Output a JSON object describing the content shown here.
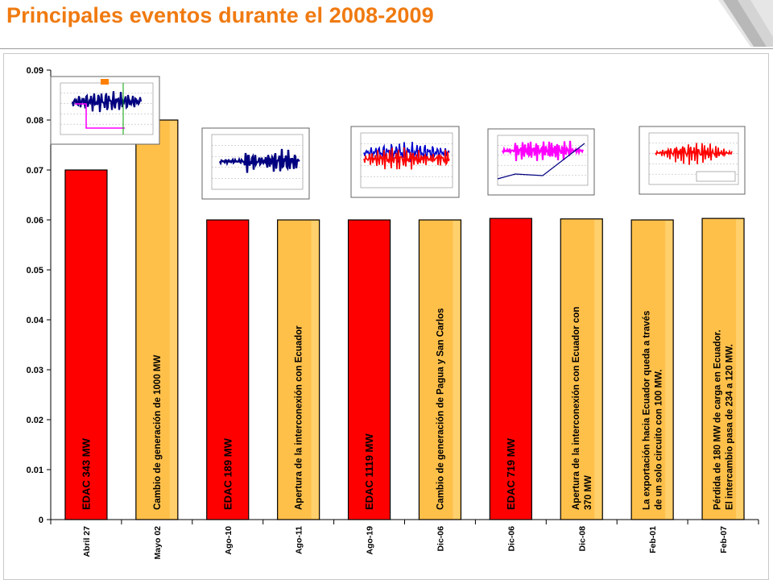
{
  "page": {
    "title": "Principales eventos durante el 2008-2009"
  },
  "colors": {
    "title": "#f07a10",
    "red_bar": "#ff0000",
    "orange_bar": "#ffc04a",
    "bar_outline": "#000000"
  },
  "chart_data": {
    "type": "bar",
    "categories": [
      "Abril 27",
      "Mayo 02",
      "Ago-10",
      "Ago-11",
      "Ago-19",
      "Dic-06",
      "Dic-06",
      "Dic-08",
      "Feb-01",
      "Feb-07"
    ],
    "values": [
      0.07,
      0.08,
      0.06,
      0.06,
      0.06,
      0.06,
      0.0603,
      0.0602,
      0.06,
      0.0603
    ],
    "bar_colors": [
      "red",
      "orange",
      "red",
      "orange",
      "red",
      "orange",
      "red",
      "orange",
      "orange",
      "orange"
    ],
    "bar_labels": [
      [
        "EDAC 343 MW"
      ],
      [
        "Cambio de generación de 1000 MW"
      ],
      [
        "EDAC 189 MW"
      ],
      [
        "Apertura de la interconexión con Ecuador"
      ],
      [
        "EDAC 1119 MW"
      ],
      [
        "Cambio de generación de Pagua y San Carlos"
      ],
      [
        "EDAC 719 MW"
      ],
      [
        "Apertura de la interconexión con Ecuador con",
        "370 MW"
      ],
      [
        "La exportación hacia Ecuador queda a través",
        "de un solo circuito con 100 MW."
      ],
      [
        "Pérdida de 180 MW de carga en Ecuador.",
        "El intercambio pasa de 234 a 120 MW."
      ]
    ],
    "yticks": [
      "0",
      "0.01",
      "0.02",
      "0.03",
      "0.04",
      "0.05",
      "0.06",
      "0.07",
      "0.08",
      "0.09"
    ],
    "ylim": [
      0,
      0.09
    ],
    "grid": false,
    "legend": "none",
    "xlabel": "",
    "ylabel": ""
  },
  "thumbnails": [
    {
      "name": "thumbnail-abril-27",
      "trace": "navy-oscillation"
    },
    {
      "name": "thumbnail-ago-10",
      "trace": "navy-oscillation"
    },
    {
      "name": "thumbnail-ago-19",
      "trace": "red-blue-oscillation"
    },
    {
      "name": "thumbnail-dic-06",
      "trace": "magenta-oscillation"
    },
    {
      "name": "thumbnail-feb-01",
      "trace": "red-oscillation"
    }
  ]
}
